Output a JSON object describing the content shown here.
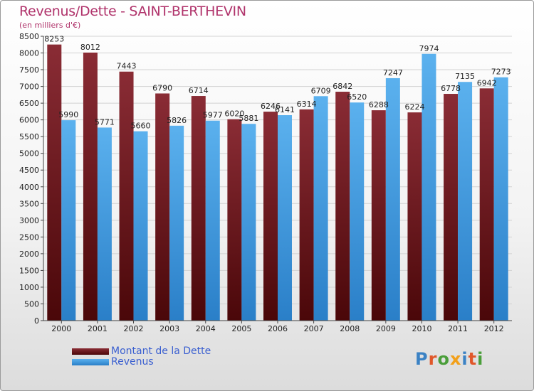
{
  "chart_data": {
    "type": "bar",
    "title": "Revenus/Dette - SAINT-BERTHEVIN",
    "subtitle": "(en milliers d'€)",
    "categories": [
      "2000",
      "2001",
      "2002",
      "2003",
      "2004",
      "2005",
      "2006",
      "2007",
      "2008",
      "2009",
      "2010",
      "2011",
      "2012"
    ],
    "series": [
      {
        "name": "Montant de la Dette",
        "color": "#7a1f28",
        "values": [
          8253,
          8012,
          7443,
          6790,
          6714,
          6020,
          6246,
          6314,
          6842,
          6288,
          6224,
          6778,
          6942
        ]
      },
      {
        "name": "Revenus",
        "color": "#4aa3e6",
        "values": [
          5990,
          5771,
          5660,
          5826,
          5977,
          5881,
          6141,
          6709,
          6520,
          7247,
          7974,
          7135,
          7273
        ]
      }
    ],
    "ylim": [
      0,
      8500
    ],
    "yticks": [
      0,
      500,
      1000,
      1500,
      2000,
      2500,
      3000,
      3500,
      4000,
      4500,
      5000,
      5500,
      6000,
      6500,
      7000,
      7500,
      8000,
      8500
    ],
    "grid": true,
    "legend": "bottom-left"
  },
  "logo": {
    "text": "Proxiti",
    "colors": [
      "#3b82c4",
      "#e0572a",
      "#4a9e3a",
      "#f2a01a",
      "#3b82c4",
      "#e0572a",
      "#4a9e3a"
    ]
  }
}
